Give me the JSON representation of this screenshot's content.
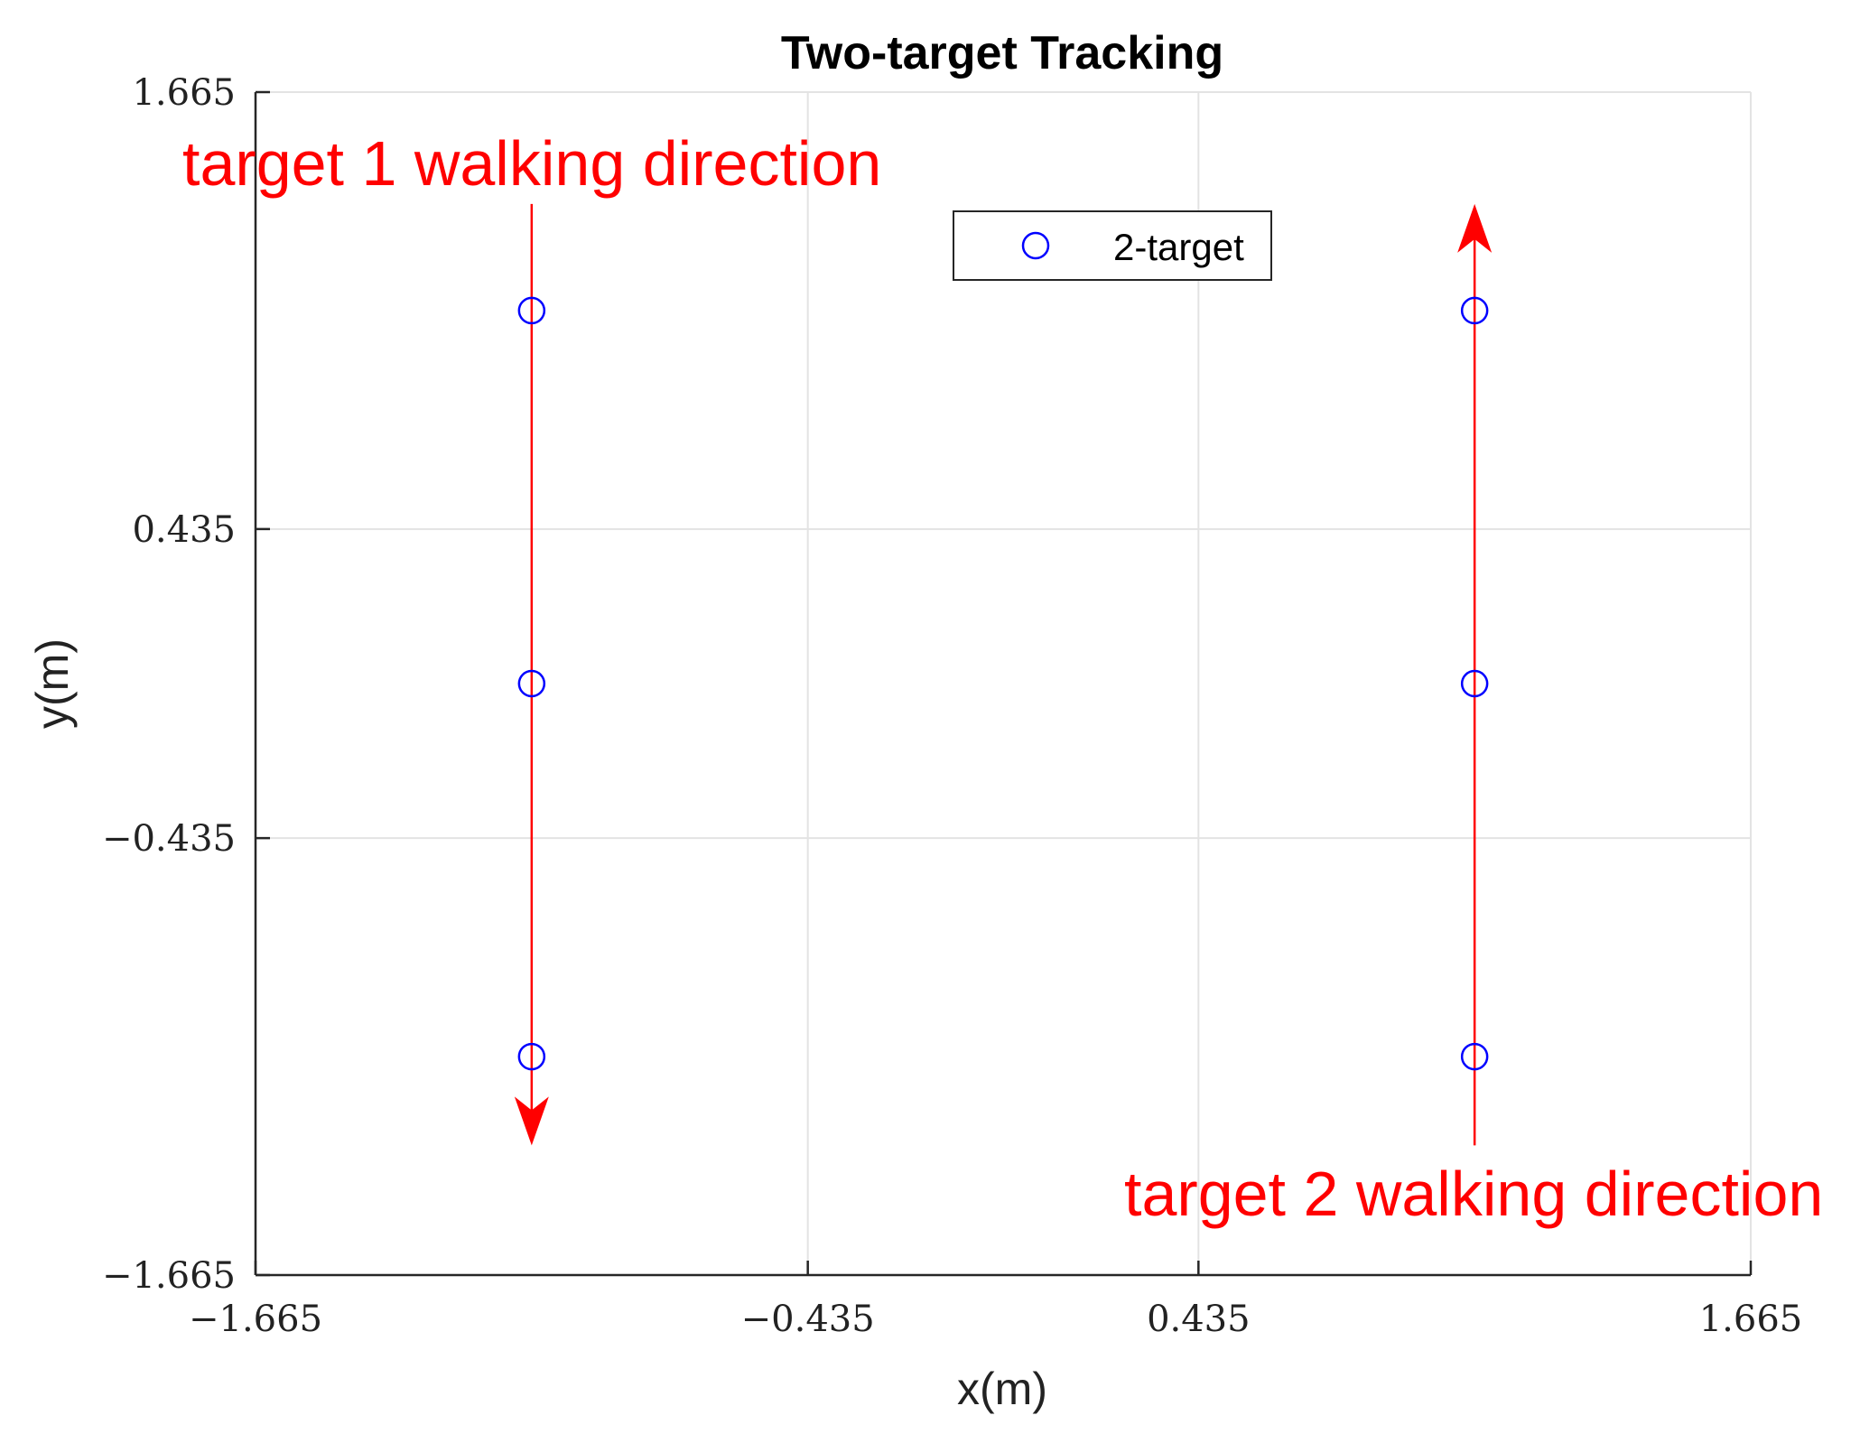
{
  "chart_data": {
    "type": "scatter",
    "title": "Two-target Tracking",
    "xlabel": "x(m)",
    "ylabel": "y(m)",
    "xlim": [
      -1.665,
      1.665
    ],
    "ylim": [
      -1.665,
      1.665
    ],
    "xticks": [
      -1.665,
      -0.435,
      0.435,
      1.665
    ],
    "yticks": [
      -1.665,
      -0.435,
      0.435,
      1.665
    ],
    "xtick_labels": [
      "−1.665",
      "−0.435",
      "0.435",
      "1.665"
    ],
    "ytick_labels": [
      "−1.665",
      "−0.435",
      "0.435",
      "1.665"
    ],
    "grid": true,
    "legend_placement": "top-center",
    "series": [
      {
        "name": "2-target",
        "marker": "circle",
        "color": "#0000ff",
        "points": [
          {
            "x": -1.05,
            "y": 1.05
          },
          {
            "x": -1.05,
            "y": 0.0
          },
          {
            "x": -1.05,
            "y": -1.05
          },
          {
            "x": 1.05,
            "y": 1.05
          },
          {
            "x": 1.05,
            "y": 0.0
          },
          {
            "x": 1.05,
            "y": -1.05
          }
        ]
      }
    ],
    "annotations": [
      {
        "text": "target 1 walking direction",
        "color": "#ff0000",
        "arrow": {
          "x": -1.05,
          "from_y": 1.35,
          "to_y": -1.3
        }
      },
      {
        "text": "target 2 walking direction",
        "color": "#ff0000",
        "arrow": {
          "x": 1.05,
          "from_y": -1.3,
          "to_y": 1.35
        }
      }
    ]
  }
}
